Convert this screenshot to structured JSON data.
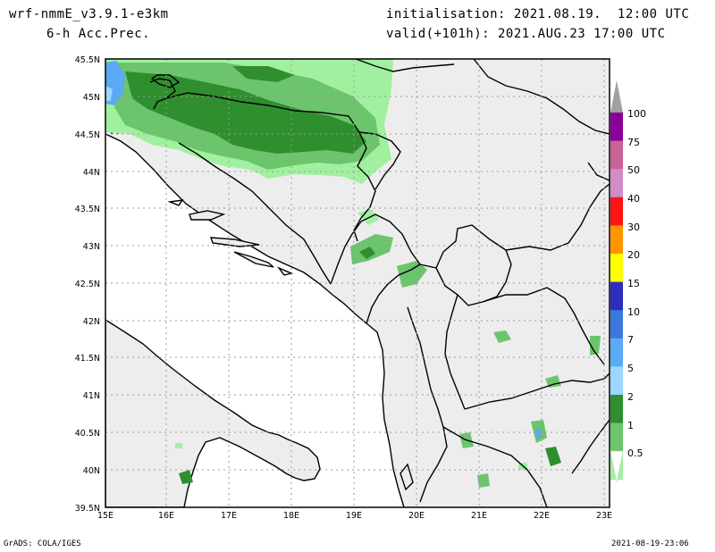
{
  "header": {
    "model": "wrf-nmmE_v3.9.1-e3km",
    "field": "6-h Acc.Prec.",
    "init": "initialisation: 2021.08.19.  12:00 UTC",
    "valid": "valid(+101h): 2021.AUG.23 17:00 UTC"
  },
  "footer": {
    "credit": "GrADS: COLA/IGES",
    "timestamp": "2021-08-19-23:06"
  },
  "axes": {
    "lat_labels": [
      "45.5N",
      "45N",
      "44.5N",
      "44N",
      "43.5N",
      "43N",
      "42.5N",
      "42N",
      "41.5N",
      "41N",
      "40.5N",
      "40N",
      "39.5N"
    ],
    "lon_labels": [
      "15E",
      "16E",
      "17E",
      "18E",
      "19E",
      "20E",
      "21E",
      "22E",
      "23E"
    ]
  },
  "colorbar": {
    "labels": [
      "100",
      "75",
      "50",
      "40",
      "30",
      "20",
      "15",
      "10",
      "7",
      "5",
      "2",
      "1",
      "0.5"
    ],
    "colors": [
      "#8a009a",
      "#c86496",
      "#d28cc8",
      "#ff1414",
      "#ff9600",
      "#ffff00",
      "#2d2dbe",
      "#3c78dc",
      "#5aaaf5",
      "#9bd7ff",
      "#2f8f2f",
      "#6cc46c",
      "#a0f0a0"
    ],
    "over_color": "#a0a0a0"
  },
  "map": {
    "land_color": "#ededed",
    "ocean_color": "#ffffff",
    "grid_color": "#9a9a9a"
  }
}
